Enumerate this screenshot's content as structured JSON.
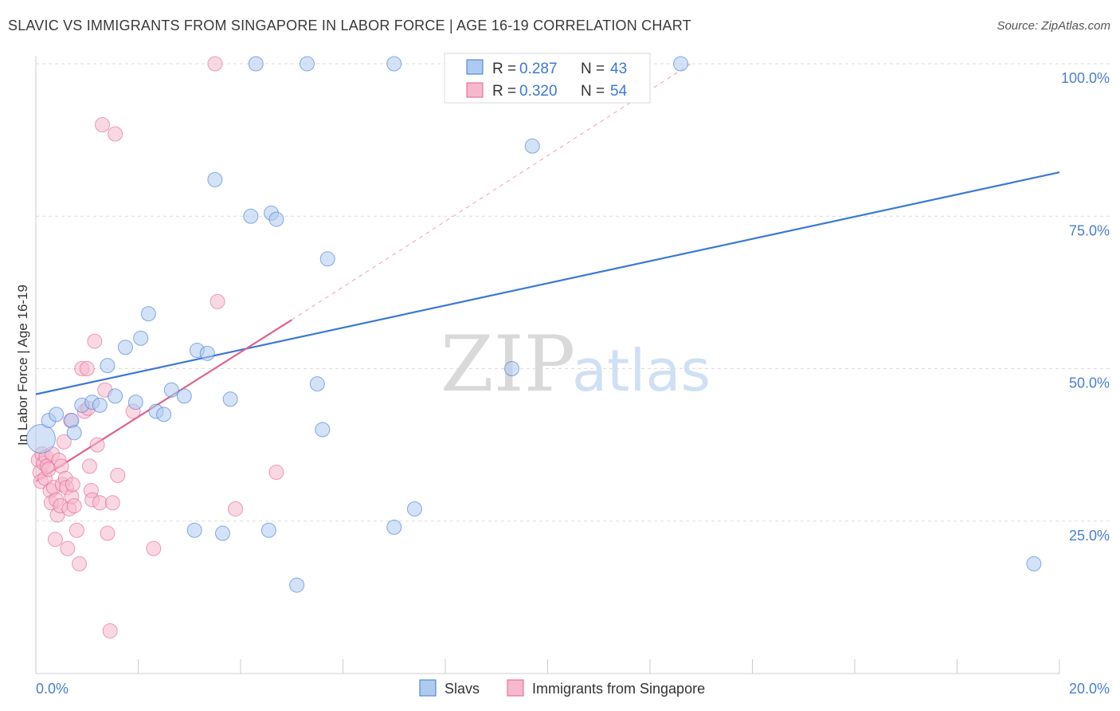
{
  "title": "SLAVIC VS IMMIGRANTS FROM SINGAPORE IN LABOR FORCE | AGE 16-19 CORRELATION CHART",
  "source": "Source: ZipAtlas.com",
  "colors": {
    "blue": "#3b78d8",
    "blue_fill": "#aecbef",
    "pink": "#e0608f",
    "pink_fill": "#f6b8cc"
  },
  "legend_top": {
    "rows": [
      {
        "r_label": "R =",
        "r_value": "0.287",
        "n_label": "N =",
        "n_value": "43",
        "series": "blue"
      },
      {
        "r_label": "R =",
        "r_value": "0.320",
        "n_label": "N =",
        "n_value": "54",
        "series": "pink"
      }
    ]
  },
  "watermark": {
    "zip": "ZIP",
    "atlas": "atlas"
  },
  "chart_data": {
    "type": "scatter",
    "title": "SLAVIC VS IMMIGRANTS FROM SINGAPORE IN LABOR FORCE | AGE 16-19 CORRELATION CHART",
    "xlabel": "",
    "ylabel": "In Labor Force | Age 16-19",
    "xlim": [
      0,
      20
    ],
    "ylim": [
      0,
      102
    ],
    "x_tick_labels": [
      "0.0%",
      "20.0%"
    ],
    "y_tick_labels": [
      "100.0%",
      "75.0%",
      "50.0%",
      "25.0%"
    ],
    "y_ticks": [
      100,
      75,
      50,
      25
    ],
    "grid": true,
    "legend_placement": "top-center",
    "series": [
      {
        "name": "Slavs",
        "color": "#3b78d8",
        "trend": {
          "x0": 0,
          "y0": 45.8,
          "x1": 20,
          "y1": 82.2
        },
        "points": [
          [
            0.1,
            38.5
          ],
          [
            0.25,
            41.5
          ],
          [
            0.4,
            42.5
          ],
          [
            0.7,
            41.5
          ],
          [
            0.75,
            39.5
          ],
          [
            0.9,
            44
          ],
          [
            1.1,
            44.5
          ],
          [
            1.25,
            44
          ],
          [
            1.4,
            50.5
          ],
          [
            1.55,
            45.5
          ],
          [
            1.75,
            53.5
          ],
          [
            1.95,
            44.5
          ],
          [
            2.05,
            55
          ],
          [
            2.2,
            59
          ],
          [
            2.35,
            43
          ],
          [
            2.5,
            42.5
          ],
          [
            2.65,
            46.5
          ],
          [
            2.9,
            45.5
          ],
          [
            3.1,
            23.5
          ],
          [
            3.15,
            53
          ],
          [
            3.35,
            52.5
          ],
          [
            3.5,
            81
          ],
          [
            3.65,
            23
          ],
          [
            3.8,
            45
          ],
          [
            4.2,
            75
          ],
          [
            4.3,
            100
          ],
          [
            4.55,
            23.5
          ],
          [
            4.6,
            75.5
          ],
          [
            4.7,
            74.5
          ],
          [
            5.1,
            14.5
          ],
          [
            5.3,
            100
          ],
          [
            5.5,
            47.5
          ],
          [
            5.6,
            40
          ],
          [
            5.7,
            68
          ],
          [
            7.0,
            100
          ],
          [
            7.0,
            24
          ],
          [
            7.4,
            27
          ],
          [
            9.3,
            50
          ],
          [
            9.5,
            100
          ],
          [
            9.7,
            86.5
          ],
          [
            10.3,
            100
          ],
          [
            12.6,
            100
          ],
          [
            19.5,
            18
          ]
        ]
      },
      {
        "name": "Immigrants from Singapore",
        "color": "#e0608f",
        "trend": {
          "x0": 0,
          "y0": 31.5,
          "x1": 5.0,
          "y1": 58.0
        },
        "trend_ext": {
          "x0": 5.0,
          "y0": 58.0,
          "x1": 12.8,
          "y1": 100
        },
        "points": [
          [
            0.05,
            35
          ],
          [
            0.08,
            33
          ],
          [
            0.1,
            31.5
          ],
          [
            0.12,
            36
          ],
          [
            0.15,
            34.5
          ],
          [
            0.18,
            32
          ],
          [
            0.2,
            35.5
          ],
          [
            0.22,
            34
          ],
          [
            0.25,
            33.5
          ],
          [
            0.28,
            30
          ],
          [
            0.3,
            28
          ],
          [
            0.32,
            36
          ],
          [
            0.35,
            30.5
          ],
          [
            0.38,
            22
          ],
          [
            0.4,
            28.5
          ],
          [
            0.42,
            26
          ],
          [
            0.45,
            35
          ],
          [
            0.48,
            27.5
          ],
          [
            0.5,
            34
          ],
          [
            0.52,
            31
          ],
          [
            0.55,
            38
          ],
          [
            0.58,
            32
          ],
          [
            0.6,
            30.5
          ],
          [
            0.62,
            20.5
          ],
          [
            0.65,
            27
          ],
          [
            0.68,
            41.5
          ],
          [
            0.7,
            29
          ],
          [
            0.72,
            31
          ],
          [
            0.75,
            27.5
          ],
          [
            0.8,
            23.5
          ],
          [
            0.85,
            18
          ],
          [
            0.9,
            50
          ],
          [
            0.95,
            43
          ],
          [
            1.0,
            50
          ],
          [
            1.02,
            43.5
          ],
          [
            1.05,
            34
          ],
          [
            1.08,
            30
          ],
          [
            1.1,
            28.5
          ],
          [
            1.15,
            54.5
          ],
          [
            1.2,
            37.5
          ],
          [
            1.25,
            28
          ],
          [
            1.3,
            90
          ],
          [
            1.35,
            46.5
          ],
          [
            1.4,
            23
          ],
          [
            1.45,
            7
          ],
          [
            1.5,
            28
          ],
          [
            1.55,
            88.5
          ],
          [
            1.6,
            32.5
          ],
          [
            1.9,
            43
          ],
          [
            2.3,
            20.5
          ],
          [
            3.5,
            100
          ],
          [
            3.55,
            61
          ],
          [
            3.9,
            27
          ],
          [
            4.7,
            33
          ]
        ]
      }
    ]
  },
  "bottom_legend": [
    {
      "label": "Slavs",
      "series": "blue"
    },
    {
      "label": "Immigrants from Singapore",
      "series": "pink"
    }
  ]
}
